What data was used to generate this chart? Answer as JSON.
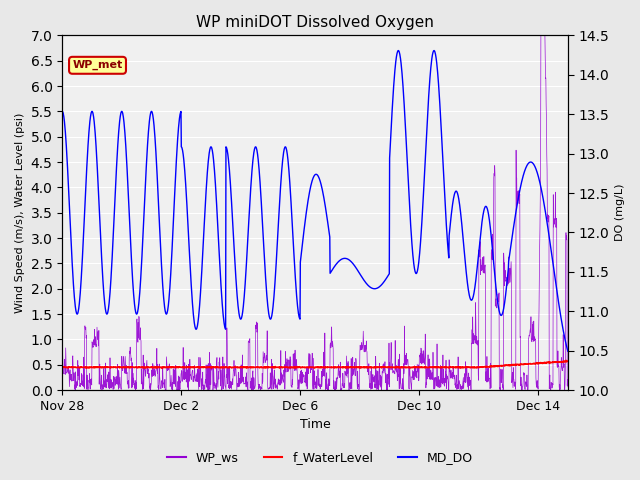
{
  "title": "WP miniDOT Dissolved Oxygen",
  "xlabel": "Time",
  "ylabel_left": "Wind Speed (m/s), Water Level (psi)",
  "ylabel_right": "DO (mg/L)",
  "ylim_left": [
    0.0,
    7.0
  ],
  "ylim_right": [
    10.0,
    14.5
  ],
  "yticks_left": [
    0.0,
    0.5,
    1.0,
    1.5,
    2.0,
    2.5,
    3.0,
    3.5,
    4.0,
    4.5,
    5.0,
    5.5,
    6.0,
    6.5,
    7.0
  ],
  "yticks_right": [
    10.0,
    10.5,
    11.0,
    11.5,
    12.0,
    12.5,
    13.0,
    13.5,
    14.0,
    14.5
  ],
  "bg_color": "#e8e8e8",
  "plot_bg_color": "#f0f0f0",
  "legend_label": "WP_met",
  "legend_box_color": "#ffff99",
  "legend_border_color": "#cc0000",
  "line_wp_ws_color": "#9400d3",
  "line_f_water_color": "#ff0000",
  "line_md_do_color": "#0000ff",
  "xtick_labels": [
    "Nov 28",
    "Dec 2",
    "Dec 6",
    "Dec 10",
    "Dec 14"
  ]
}
